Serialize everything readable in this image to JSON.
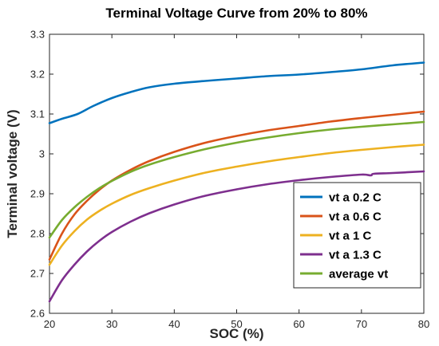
{
  "chart_data": {
    "type": "line",
    "title": "Terminal Voltage Curve from 20% to 80%",
    "xlabel": "SOC (%)",
    "ylabel": "Terminal voltage (V)",
    "xlim": [
      20,
      80
    ],
    "ylim": [
      2.6,
      3.3
    ],
    "xticks": [
      20,
      30,
      40,
      50,
      60,
      70,
      80
    ],
    "yticks": [
      2.6,
      2.7,
      2.8,
      2.9,
      3.0,
      3.1,
      3.2,
      3.3
    ],
    "xtick_labels": [
      "20",
      "30",
      "40",
      "50",
      "60",
      "70",
      "80"
    ],
    "ytick_labels": [
      "2.6",
      "2.7",
      "2.8",
      "2.9",
      "3",
      "3.1",
      "3.2",
      "3.3"
    ],
    "grid": false,
    "legend_position": "bottom-right",
    "series": [
      {
        "name": "vt a 0.2 C",
        "color": "#0072BD",
        "x": [
          20,
          22,
          24.5,
          27,
          30,
          33,
          36,
          40,
          45,
          50,
          55,
          60,
          65,
          70,
          75,
          80
        ],
        "y": [
          3.077,
          3.088,
          3.1,
          3.12,
          3.14,
          3.155,
          3.167,
          3.176,
          3.183,
          3.189,
          3.195,
          3.199,
          3.205,
          3.212,
          3.222,
          3.229
        ]
      },
      {
        "name": "vt a 0.6 C",
        "color": "#D95319",
        "x": [
          20,
          22,
          24,
          26,
          28,
          30,
          33,
          36,
          40,
          45,
          50,
          55,
          60,
          65,
          70,
          75,
          80
        ],
        "y": [
          2.735,
          2.8,
          2.848,
          2.882,
          2.91,
          2.933,
          2.96,
          2.982,
          3.005,
          3.028,
          3.045,
          3.059,
          3.07,
          3.081,
          3.09,
          3.098,
          3.106
        ]
      },
      {
        "name": "vt a 1 C",
        "color": "#EDB120",
        "x": [
          20,
          22,
          24,
          26,
          28,
          30,
          33,
          36,
          40,
          45,
          50,
          55,
          60,
          65,
          70,
          75,
          80
        ],
        "y": [
          2.722,
          2.77,
          2.806,
          2.835,
          2.857,
          2.875,
          2.897,
          2.914,
          2.933,
          2.953,
          2.968,
          2.981,
          2.992,
          3.002,
          3.01,
          3.017,
          3.023
        ]
      },
      {
        "name": "vt a 1.3 C",
        "color": "#7E2F8E",
        "x": [
          20,
          22,
          24,
          26,
          28,
          30,
          33,
          36,
          40,
          45,
          50,
          55,
          60,
          65,
          70,
          71.5,
          72,
          75,
          80
        ],
        "y": [
          2.63,
          2.683,
          2.722,
          2.755,
          2.782,
          2.804,
          2.83,
          2.851,
          2.873,
          2.895,
          2.911,
          2.924,
          2.934,
          2.942,
          2.948,
          2.946,
          2.95,
          2.952,
          2.956
        ]
      },
      {
        "name": "average vt",
        "color": "#77AC30",
        "x": [
          20,
          22,
          24,
          26,
          28,
          30,
          33,
          36,
          40,
          45,
          50,
          55,
          60,
          65,
          70,
          75,
          80
        ],
        "y": [
          2.79,
          2.834,
          2.866,
          2.892,
          2.914,
          2.932,
          2.955,
          2.973,
          2.992,
          3.012,
          3.028,
          3.041,
          3.052,
          3.061,
          3.068,
          3.074,
          3.08
        ]
      }
    ]
  }
}
